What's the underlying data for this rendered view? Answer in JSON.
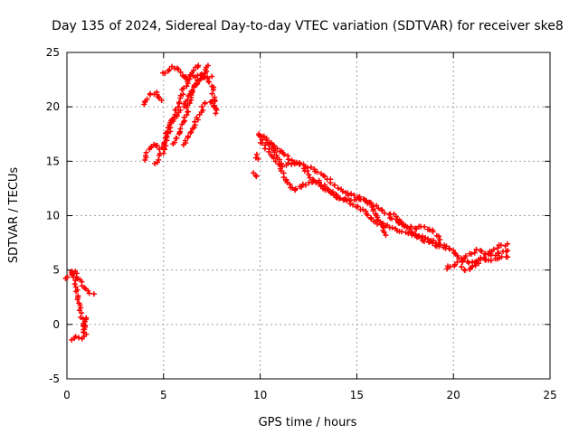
{
  "chart_data": {
    "type": "scatter",
    "title": "Day 135 of 2024, Sidereal Day-to-day VTEC variation (SDTVAR) for receiver ske8",
    "xlabel": "GPS time / hours",
    "ylabel": "SDTVAR / TECUs",
    "xlim": [
      0,
      25
    ],
    "ylim": [
      -5,
      25
    ],
    "xticks": [
      0,
      5,
      10,
      15,
      20,
      25
    ],
    "yticks": [
      -5,
      0,
      5,
      10,
      15,
      20,
      25
    ],
    "grid": true,
    "marker": "+",
    "series": [
      {
        "name": "SDTVAR",
        "color": "#ff0000",
        "tracks": [
          [
            [
              0.0,
              4.3
            ],
            [
              0.2,
              4.6
            ],
            [
              0.4,
              4.8
            ],
            [
              0.6,
              4.2
            ],
            [
              0.8,
              3.6
            ],
            [
              1.0,
              3.2
            ],
            [
              1.2,
              2.9
            ],
            [
              1.4,
              2.8
            ]
          ],
          [
            [
              0.2,
              5.0
            ],
            [
              0.4,
              4.0
            ],
            [
              0.5,
              3.0
            ],
            [
              0.6,
              2.2
            ],
            [
              0.7,
              1.2
            ],
            [
              0.8,
              0.2
            ],
            [
              0.9,
              -0.4
            ],
            [
              1.0,
              -0.9
            ]
          ],
          [
            [
              0.2,
              -1.3
            ],
            [
              0.5,
              -1.0
            ],
            [
              0.8,
              -1.2
            ],
            [
              0.9,
              -0.3
            ],
            [
              1.0,
              0.6
            ]
          ],
          [
            [
              4.0,
              15.0
            ],
            [
              4.2,
              16.0
            ],
            [
              4.5,
              16.6
            ],
            [
              4.8,
              16.2
            ],
            [
              5.0,
              16.5
            ],
            [
              5.2,
              17.8
            ],
            [
              5.6,
              19.0
            ],
            [
              6.0,
              20.0
            ],
            [
              6.4,
              21.4
            ],
            [
              6.8,
              22.3
            ],
            [
              7.2,
              23.2
            ],
            [
              7.3,
              23.8
            ]
          ],
          [
            [
              4.0,
              20.2
            ],
            [
              4.3,
              21.2
            ],
            [
              4.6,
              21.3
            ],
            [
              4.9,
              20.6
            ]
          ],
          [
            [
              4.6,
              14.8
            ],
            [
              5.0,
              16.0
            ],
            [
              5.3,
              17.8
            ],
            [
              5.6,
              19.6
            ],
            [
              5.9,
              21.0
            ],
            [
              6.2,
              22.2
            ],
            [
              6.4,
              23.0
            ],
            [
              6.6,
              23.6
            ],
            [
              6.8,
              23.8
            ]
          ],
          [
            [
              5.5,
              16.6
            ],
            [
              5.8,
              17.6
            ],
            [
              6.1,
              19.0
            ],
            [
              6.4,
              20.8
            ],
            [
              6.6,
              21.8
            ],
            [
              6.8,
              22.4
            ],
            [
              7.0,
              22.6
            ],
            [
              7.2,
              22.6
            ],
            [
              7.5,
              22.8
            ]
          ],
          [
            [
              6.0,
              16.6
            ],
            [
              6.3,
              17.4
            ],
            [
              6.6,
              18.4
            ],
            [
              6.9,
              19.6
            ],
            [
              7.2,
              20.4
            ],
            [
              7.5,
              20.6
            ],
            [
              7.6,
              20.0
            ]
          ],
          [
            [
              5.0,
              23.0
            ],
            [
              5.4,
              23.6
            ],
            [
              5.8,
              23.4
            ],
            [
              6.0,
              22.8
            ],
            [
              6.2,
              22.6
            ],
            [
              6.6,
              22.8
            ],
            [
              7.0,
              23.0
            ],
            [
              7.5,
              22.0
            ],
            [
              7.6,
              21.0
            ],
            [
              7.7,
              19.4
            ]
          ],
          [
            [
              9.7,
              14.0
            ],
            [
              9.8,
              13.6
            ]
          ],
          [
            [
              9.8,
              15.6
            ],
            [
              9.9,
              15.2
            ]
          ],
          [
            [
              9.9,
              17.6
            ],
            [
              10.2,
              17.2
            ],
            [
              10.5,
              16.6
            ],
            [
              10.8,
              15.8
            ],
            [
              11.0,
              14.8
            ],
            [
              11.2,
              13.8
            ],
            [
              11.5,
              12.8
            ],
            [
              11.8,
              12.4
            ],
            [
              12.0,
              12.6
            ],
            [
              12.5,
              13.0
            ],
            [
              13.0,
              13.2
            ],
            [
              13.5,
              12.4
            ],
            [
              14.0,
              11.6
            ],
            [
              14.5,
              11.4
            ],
            [
              15.0,
              11.6
            ],
            [
              15.5,
              11.4
            ],
            [
              16.0,
              10.8
            ],
            [
              16.5,
              10.2
            ],
            [
              17.0,
              9.6
            ],
            [
              17.5,
              9.0
            ],
            [
              18.0,
              8.8
            ],
            [
              18.5,
              9.0
            ],
            [
              19.0,
              8.4
            ],
            [
              19.3,
              7.8
            ]
          ],
          [
            [
              10.0,
              17.2
            ],
            [
              10.3,
              17.0
            ],
            [
              10.6,
              16.6
            ],
            [
              11.0,
              16.0
            ],
            [
              11.4,
              15.4
            ],
            [
              11.8,
              14.8
            ],
            [
              12.2,
              14.6
            ],
            [
              12.6,
              14.4
            ],
            [
              13.0,
              14.0
            ],
            [
              13.5,
              13.4
            ],
            [
              14.0,
              12.6
            ],
            [
              14.5,
              12.0
            ],
            [
              15.0,
              11.8
            ],
            [
              15.5,
              11.4
            ],
            [
              15.8,
              10.8
            ],
            [
              16.0,
              10.0
            ],
            [
              16.3,
              9.0
            ],
            [
              16.5,
              8.2
            ]
          ],
          [
            [
              10.0,
              16.8
            ],
            [
              10.4,
              16.0
            ],
            [
              10.8,
              15.0
            ],
            [
              11.2,
              14.6
            ],
            [
              11.6,
              14.8
            ],
            [
              12.0,
              14.8
            ],
            [
              12.4,
              14.0
            ],
            [
              12.8,
              13.2
            ],
            [
              13.2,
              12.6
            ],
            [
              13.6,
              12.2
            ],
            [
              14.0,
              11.8
            ],
            [
              14.4,
              11.4
            ],
            [
              14.8,
              11.0
            ],
            [
              15.2,
              10.6
            ],
            [
              15.6,
              10.0
            ],
            [
              16.0,
              9.4
            ],
            [
              16.6,
              9.0
            ],
            [
              17.2,
              8.6
            ],
            [
              17.8,
              8.4
            ],
            [
              18.4,
              8.0
            ],
            [
              19.0,
              7.6
            ],
            [
              19.6,
              7.2
            ],
            [
              20.0,
              6.8
            ]
          ],
          [
            [
              16.8,
              10.2
            ],
            [
              17.2,
              9.6
            ],
            [
              17.6,
              8.8
            ],
            [
              18.0,
              8.2
            ],
            [
              18.4,
              7.8
            ],
            [
              18.8,
              7.6
            ],
            [
              19.2,
              7.2
            ],
            [
              19.6,
              7.0
            ]
          ],
          [
            [
              19.6,
              5.2
            ],
            [
              20.0,
              5.4
            ],
            [
              20.4,
              5.8
            ],
            [
              20.8,
              6.4
            ],
            [
              21.2,
              6.8
            ],
            [
              21.6,
              6.6
            ],
            [
              22.0,
              6.4
            ],
            [
              22.4,
              6.6
            ],
            [
              22.8,
              6.8
            ]
          ],
          [
            [
              20.0,
              6.6
            ],
            [
              20.4,
              6.0
            ],
            [
              20.8,
              5.6
            ],
            [
              21.2,
              5.8
            ],
            [
              21.6,
              6.2
            ],
            [
              22.0,
              6.8
            ],
            [
              22.4,
              7.2
            ],
            [
              22.8,
              7.4
            ]
          ],
          [
            [
              20.4,
              5.2
            ],
            [
              20.8,
              5.0
            ],
            [
              21.2,
              5.6
            ],
            [
              21.6,
              6.0
            ],
            [
              22.0,
              5.8
            ],
            [
              22.4,
              6.2
            ],
            [
              22.8,
              6.2
            ]
          ]
        ]
      }
    ]
  }
}
